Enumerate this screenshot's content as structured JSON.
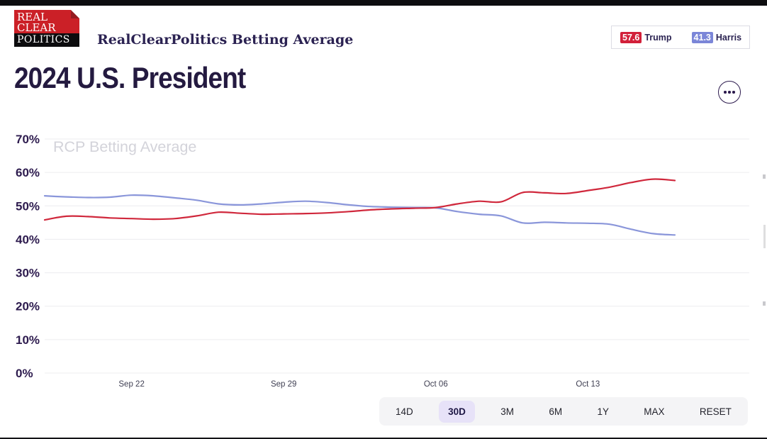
{
  "header": {
    "logo": {
      "line1": "REAL",
      "line2": "CLEAR",
      "line3": "POLITICS"
    },
    "title": "RealClearPolitics Betting Average",
    "scoreboard": [
      {
        "value": "57.6",
        "name": "Trump",
        "color": "#d2203a"
      },
      {
        "value": "41.3",
        "name": "Harris",
        "color": "#7b86d8"
      }
    ]
  },
  "main": {
    "heading": "2024 U.S. President",
    "menu_icon": "more-options-ellipsis"
  },
  "chart_data": {
    "type": "line",
    "watermark": "RCP Betting Average",
    "x": [
      "Sep 18",
      "Sep 19",
      "Sep 20",
      "Sep 21",
      "Sep 22",
      "Sep 23",
      "Sep 24",
      "Sep 25",
      "Sep 26",
      "Sep 27",
      "Sep 28",
      "Sep 29",
      "Sep 30",
      "Oct 01",
      "Oct 02",
      "Oct 03",
      "Oct 04",
      "Oct 05",
      "Oct 06",
      "Oct 07",
      "Oct 08",
      "Oct 09",
      "Oct 10",
      "Oct 11",
      "Oct 12",
      "Oct 13",
      "Oct 14",
      "Oct 15",
      "Oct 16",
      "Oct 17"
    ],
    "series": [
      {
        "name": "Trump",
        "color": "#d0283c",
        "values": [
          45.8,
          46.9,
          46.8,
          46.4,
          46.2,
          46.0,
          46.2,
          47.0,
          48.1,
          47.8,
          47.5,
          47.6,
          47.7,
          47.9,
          48.3,
          48.8,
          49.1,
          49.3,
          49.5,
          50.6,
          51.4,
          51.2,
          54.0,
          53.9,
          53.7,
          54.6,
          55.6,
          57.0,
          58.0,
          57.6
        ]
      },
      {
        "name": "Harris",
        "color": "#8a96da",
        "values": [
          53.0,
          52.7,
          52.5,
          52.6,
          53.2,
          53.0,
          52.4,
          51.7,
          50.6,
          50.3,
          50.6,
          51.1,
          51.4,
          51.0,
          50.3,
          49.8,
          49.6,
          49.5,
          49.4,
          48.3,
          47.5,
          47.0,
          44.9,
          45.1,
          44.9,
          44.8,
          44.5,
          43.0,
          41.7,
          41.3
        ]
      }
    ],
    "ylim": [
      0,
      70
    ],
    "ytick_values": [
      0,
      10,
      20,
      30,
      40,
      50,
      60,
      70
    ],
    "ytick_labels": [
      "0%",
      "10%",
      "20%",
      "30%",
      "40%",
      "50%",
      "60%",
      "70%"
    ],
    "xticks": {
      "labels": [
        "Sep 22",
        "Sep 29",
        "Oct 06",
        "Oct 13"
      ],
      "indices": [
        4,
        11,
        18,
        25
      ]
    },
    "grid": true,
    "legend_position": "none"
  },
  "range_selector": {
    "options": [
      "14D",
      "30D",
      "3M",
      "6M",
      "1Y",
      "MAX",
      "RESET"
    ],
    "selected": "30D"
  }
}
